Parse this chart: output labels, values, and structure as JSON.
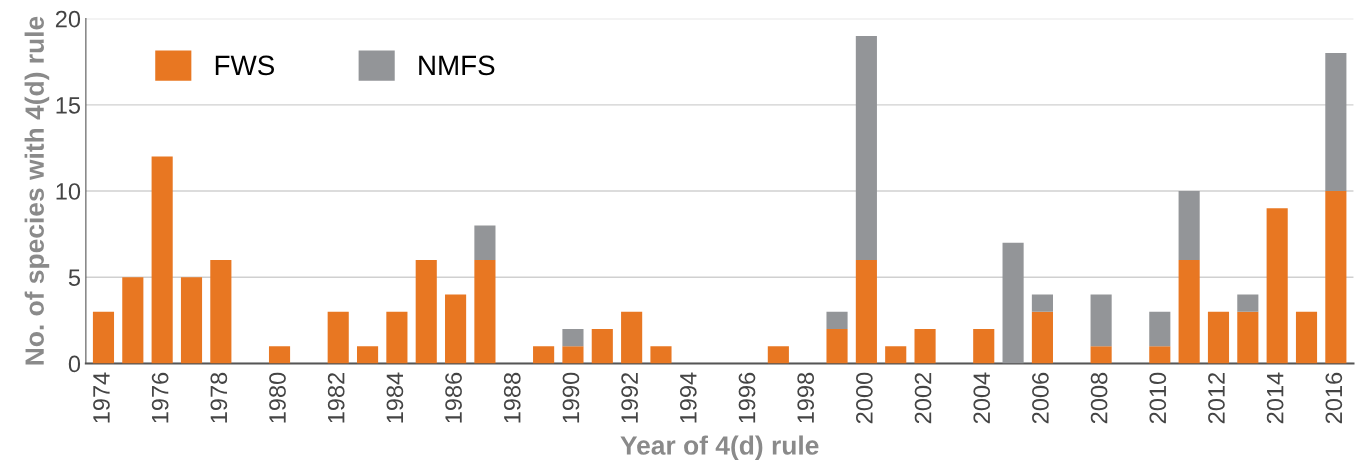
{
  "chart_data": {
    "type": "bar",
    "stacked": true,
    "xlabel": "Year of 4(d) rule",
    "ylabel": "No. of species with 4(d) rule",
    "categories": [
      "1974",
      null,
      "1976",
      null,
      "1978",
      null,
      "1980",
      null,
      "1982",
      null,
      "1984",
      null,
      "1986",
      null,
      "1988",
      null,
      "1990",
      null,
      "1992",
      null,
      "1994",
      null,
      "1996",
      null,
      "1998",
      null,
      "2000",
      null,
      "2002",
      null,
      "2004",
      null,
      "2006",
      null,
      "2008",
      null,
      "2010",
      null,
      "2012",
      null,
      "2014",
      null,
      "2016"
    ],
    "series": [
      {
        "name": "FWS",
        "color": "#e87722",
        "values": [
          3,
          5,
          12,
          5,
          6,
          0,
          1,
          0,
          3,
          1,
          3,
          6,
          4,
          6,
          0,
          1,
          1,
          2,
          3,
          1,
          0,
          0,
          0,
          1,
          0,
          2,
          6,
          1,
          2,
          0,
          2,
          0,
          3,
          0,
          1,
          0,
          1,
          6,
          3,
          3,
          9,
          3,
          10
        ]
      },
      {
        "name": "NMFS",
        "color": "#939598",
        "values": [
          0,
          0,
          0,
          0,
          0,
          0,
          0,
          0,
          0,
          0,
          0,
          0,
          0,
          2,
          0,
          0,
          1,
          0,
          0,
          0,
          0,
          0,
          0,
          0,
          0,
          1,
          13,
          0,
          0,
          0,
          0,
          7,
          1,
          0,
          3,
          0,
          2,
          4,
          0,
          1,
          0,
          0,
          8
        ]
      }
    ],
    "ylim": [
      0,
      20
    ],
    "yticks": [
      0,
      5,
      10,
      15,
      20
    ],
    "grid": "y",
    "legend": "top left"
  }
}
